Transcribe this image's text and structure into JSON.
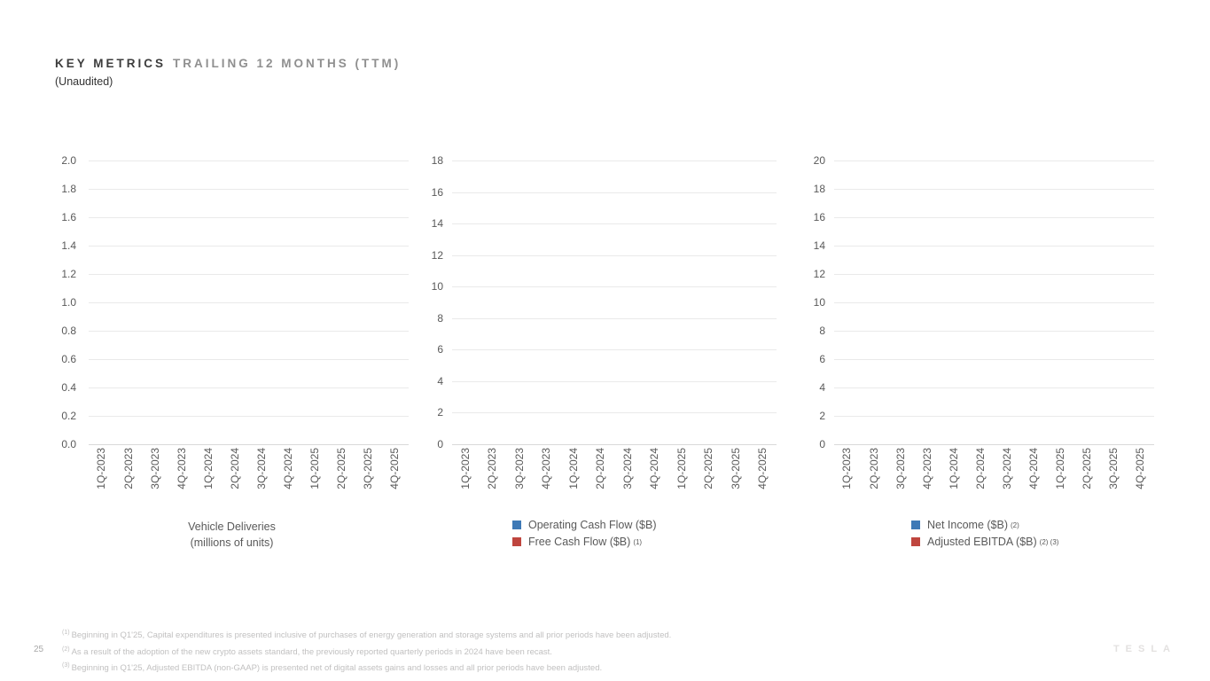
{
  "slide": {
    "title_primary": "KEY METRICS",
    "title_secondary": "TRAILING 12 MONTHS (TTM)",
    "subtitle": "(Unaudited)",
    "page_number": "25",
    "brand_wordmark": "TESLA"
  },
  "colors": {
    "legend_blue": "#3e79b6",
    "legend_red": "#bf453e",
    "gridline": "#eaeaea",
    "axis_baseline": "#d9d9d9",
    "tick_label": "#595959",
    "title_secondary_gray": "#8f8f8f",
    "footnote_gray": "#c1c0c0"
  },
  "chart_data": [
    {
      "type": "bar",
      "title": "Vehicle Deliveries",
      "subtitle": "(millions of units)",
      "categories": [
        "1Q-2023",
        "2Q-2023",
        "3Q-2023",
        "4Q-2023",
        "1Q-2024",
        "2Q-2024",
        "3Q-2024",
        "4Q-2024",
        "1Q-2025",
        "2Q-2025",
        "3Q-2025",
        "4Q-2025"
      ],
      "series": [],
      "ylim": [
        0.0,
        2.0
      ],
      "ytick_step": 0.2,
      "yticks_top_down": [
        "2.0",
        "1.8",
        "1.6",
        "1.4",
        "1.2",
        "1.0",
        "0.8",
        "0.6",
        "0.4",
        "0.2",
        "0.0"
      ],
      "grid": true,
      "legend": [],
      "legend_position": "none"
    },
    {
      "type": "bar",
      "title": "",
      "subtitle": "",
      "categories": [
        "1Q-2023",
        "2Q-2023",
        "3Q-2023",
        "4Q-2023",
        "1Q-2024",
        "2Q-2024",
        "3Q-2024",
        "4Q-2024",
        "1Q-2025",
        "2Q-2025",
        "3Q-2025",
        "4Q-2025"
      ],
      "series": [],
      "ylim": [
        0,
        18
      ],
      "ytick_step": 2,
      "yticks_top_down": [
        "18",
        "16",
        "14",
        "12",
        "10",
        "8",
        "6",
        "4",
        "2",
        "0"
      ],
      "grid": true,
      "legend": [
        {
          "label": "Operating Cash Flow ($B)",
          "superscript": "",
          "color": "#3e79b6"
        },
        {
          "label": "Free Cash Flow ($B)",
          "superscript": "(1)",
          "color": "#bf453e"
        }
      ],
      "legend_position": "bottom"
    },
    {
      "type": "bar",
      "title": "",
      "subtitle": "",
      "categories": [
        "1Q-2023",
        "2Q-2023",
        "3Q-2023",
        "4Q-2023",
        "1Q-2024",
        "2Q-2024",
        "3Q-2024",
        "4Q-2024",
        "1Q-2025",
        "2Q-2025",
        "3Q-2025",
        "4Q-2025"
      ],
      "series": [],
      "ylim": [
        0,
        20
      ],
      "ytick_step": 2,
      "yticks_top_down": [
        "20",
        "18",
        "16",
        "14",
        "12",
        "10",
        "8",
        "6",
        "4",
        "2",
        "0"
      ],
      "grid": true,
      "legend": [
        {
          "label": "Net Income ($B)",
          "superscript": "(2)",
          "color": "#3e79b6"
        },
        {
          "label": "Adjusted EBITDA ($B)",
          "superscript": "(2) (3)",
          "color": "#bf453e"
        }
      ],
      "legend_position": "bottom"
    }
  ],
  "footnotes": [
    {
      "marker": "(1)",
      "text": "Beginning in Q1'25, Capital expenditures is presented inclusive of purchases of energy generation and storage systems and all prior periods have been adjusted."
    },
    {
      "marker": "(2)",
      "text": "As a result of the adoption of the new crypto assets standard, the previously reported quarterly periods in 2024 have been recast."
    },
    {
      "marker": "(3)",
      "text": "Beginning in Q1'25, Adjusted EBITDA (non-GAAP) is presented net of digital assets gains and losses and all prior periods have been adjusted."
    }
  ]
}
